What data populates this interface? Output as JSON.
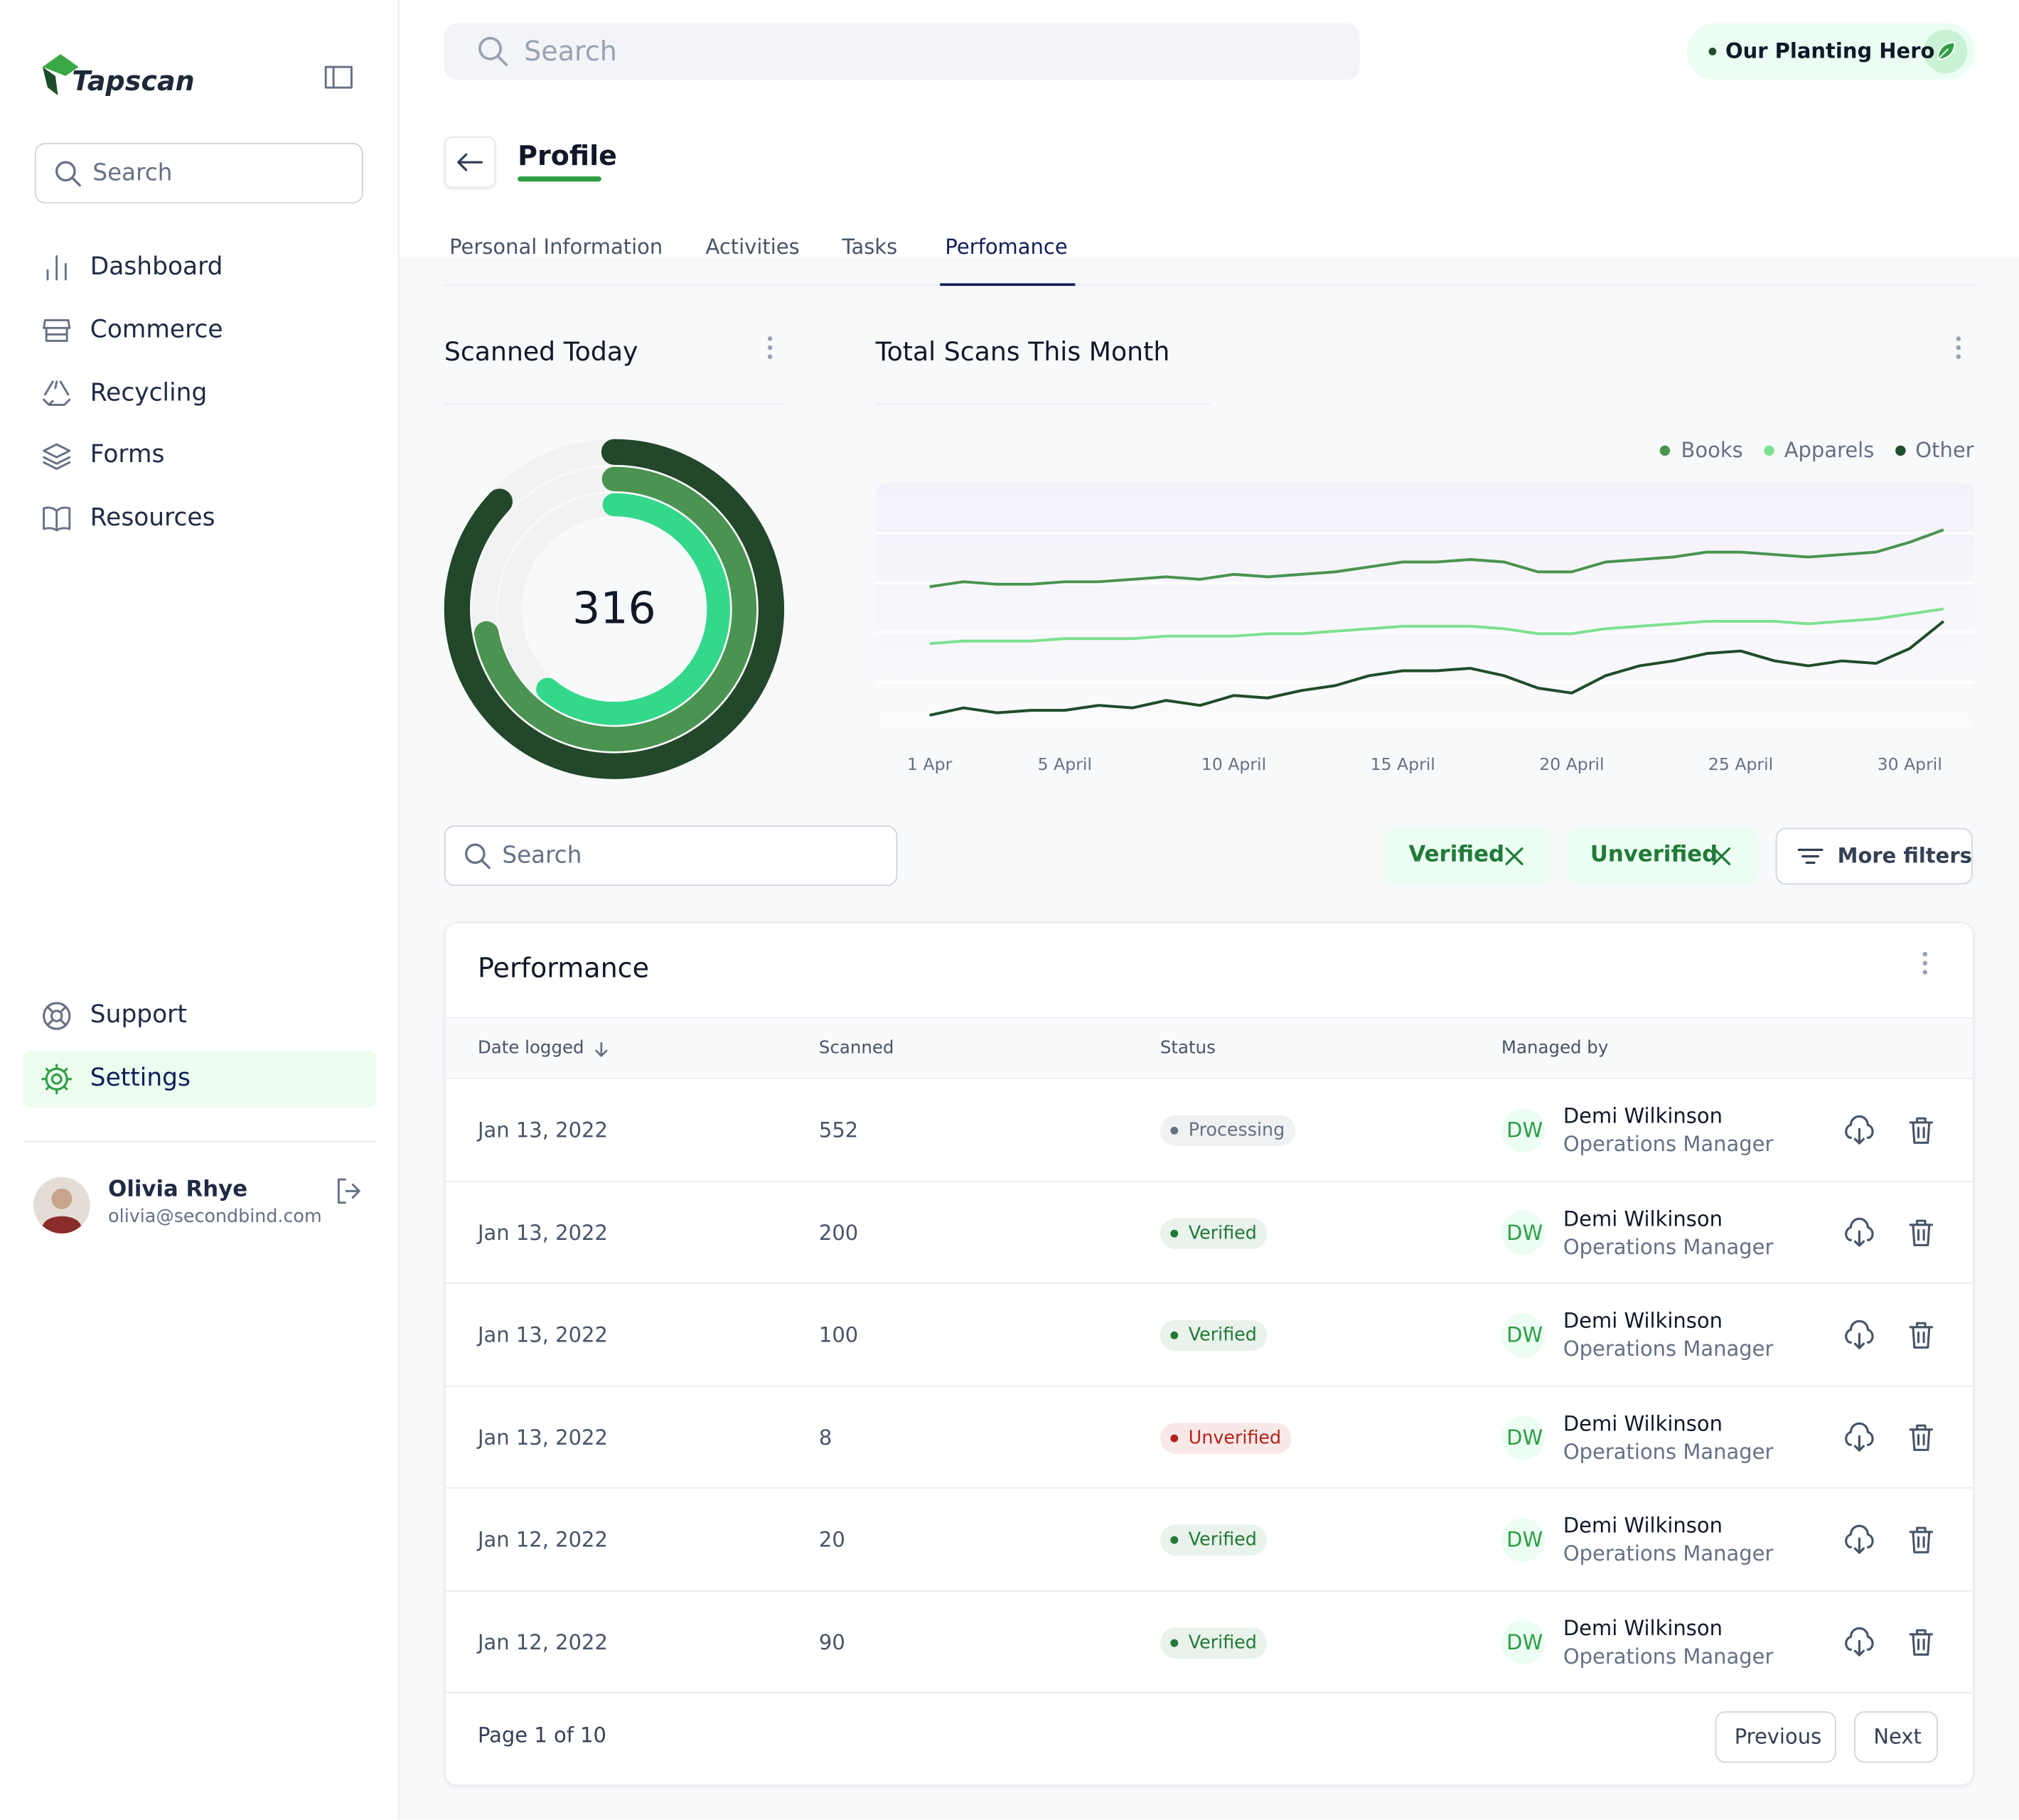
{
  "sidebar": {
    "logo": "Tapscan",
    "search": "Search",
    "nav": [
      "Dashboard",
      "Commerce",
      "Recycling",
      "Forms",
      "Resources"
    ],
    "footer_nav": [
      "Support",
      "Settings"
    ],
    "active_nav": "Settings",
    "user": {
      "name": "Olivia Rhye",
      "email": "olivia@secondbind.com"
    }
  },
  "topbar": {
    "search": "Search",
    "badge": "Our Planting Hero"
  },
  "profile": {
    "title": "Profile",
    "tabs": [
      "Personal Information",
      "Activities",
      "Tasks",
      "Perfomance"
    ],
    "active_tab": "Perfomance"
  },
  "chart_data": [
    {
      "type": "donut",
      "title": "Scanned Today",
      "center_value": 316,
      "max": 100,
      "rings": [
        {
          "value": 87,
          "color": "#22472a"
        },
        {
          "value": 72,
          "color": "#4a9350"
        },
        {
          "value": 61,
          "color": "#34d88a"
        }
      ]
    },
    {
      "type": "line",
      "title": "Total Scans This Month",
      "legend": "top-right",
      "x": [
        1,
        2,
        3,
        4,
        5,
        6,
        7,
        8,
        9,
        10,
        11,
        12,
        13,
        14,
        15,
        16,
        17,
        18,
        19,
        20,
        21,
        22,
        23,
        24,
        25,
        26,
        27,
        28,
        29,
        30,
        31
      ],
      "xlim": [
        -0.6,
        31.9
      ],
      "ylim": [
        0,
        100
      ],
      "xticks": [
        {
          "value": 1,
          "label": "1 Apr"
        },
        {
          "value": 5,
          "label": "5 April"
        },
        {
          "value": 10,
          "label": "10 April"
        },
        {
          "value": 15,
          "label": "15 April"
        },
        {
          "value": 20,
          "label": "20 April"
        },
        {
          "value": 25,
          "label": "25 April"
        },
        {
          "value": 30,
          "label": "30 April"
        }
      ],
      "series": [
        {
          "name": "Books",
          "color": "#4a9350",
          "values": [
            58,
            60,
            59,
            59,
            60,
            60,
            61,
            62,
            61,
            63,
            62,
            63,
            64,
            66,
            68,
            68,
            69,
            68,
            64,
            64,
            68,
            69,
            70,
            72,
            72,
            71,
            70,
            71,
            72,
            76,
            81
          ]
        },
        {
          "name": "Apparels",
          "color": "#7ee08e",
          "values": [
            35,
            36,
            36,
            36,
            37,
            37,
            37,
            38,
            38,
            38,
            39,
            39,
            40,
            41,
            42,
            42,
            42,
            41,
            39,
            39,
            41,
            42,
            43,
            44,
            44,
            44,
            43,
            44,
            45,
            47,
            49
          ]
        },
        {
          "name": "Other",
          "color": "#1f4d2a",
          "values": [
            6,
            9,
            7,
            8,
            8,
            10,
            9,
            12,
            10,
            14,
            13,
            16,
            18,
            22,
            24,
            24,
            25,
            22,
            17,
            15,
            22,
            26,
            28,
            31,
            32,
            28,
            26,
            28,
            27,
            33,
            44
          ]
        }
      ]
    }
  ],
  "filters": {
    "search": "Search",
    "chips": [
      "Verified",
      "Unverified"
    ],
    "more": "More filters"
  },
  "table": {
    "title": "Performance",
    "columns": [
      "Date logged",
      "Scanned",
      "Status",
      "Managed by"
    ],
    "rows": [
      {
        "date": "Jan 13, 2022",
        "scanned": 552,
        "status": "Processing",
        "status_color": "#667085",
        "initials": "DW",
        "manager": "Demi Wilkinson",
        "role": "Operations Manager"
      },
      {
        "date": "Jan 13, 2022",
        "scanned": 200,
        "status": "Verified",
        "status_color": "#217a37",
        "initials": "DW",
        "manager": "Demi Wilkinson",
        "role": "Operations Manager"
      },
      {
        "date": "Jan 13, 2022",
        "scanned": 100,
        "status": "Verified",
        "status_color": "#217a37",
        "initials": "DW",
        "manager": "Demi Wilkinson",
        "role": "Operations Manager"
      },
      {
        "date": "Jan 13, 2022",
        "scanned": 8,
        "status": "Unverified",
        "status_color": "#b42318",
        "initials": "DW",
        "manager": "Demi Wilkinson",
        "role": "Operations Manager"
      },
      {
        "date": "Jan 12, 2022",
        "scanned": 20,
        "status": "Verified",
        "status_color": "#217a37",
        "initials": "DW",
        "manager": "Demi Wilkinson",
        "role": "Operations Manager"
      },
      {
        "date": "Jan 12, 2022",
        "scanned": 90,
        "status": "Verified",
        "status_color": "#217a37",
        "initials": "DW",
        "manager": "Demi Wilkinson",
        "role": "Operations Manager"
      }
    ],
    "pagination": "Page 1 of 10",
    "prev": "Previous",
    "next": "Next"
  }
}
